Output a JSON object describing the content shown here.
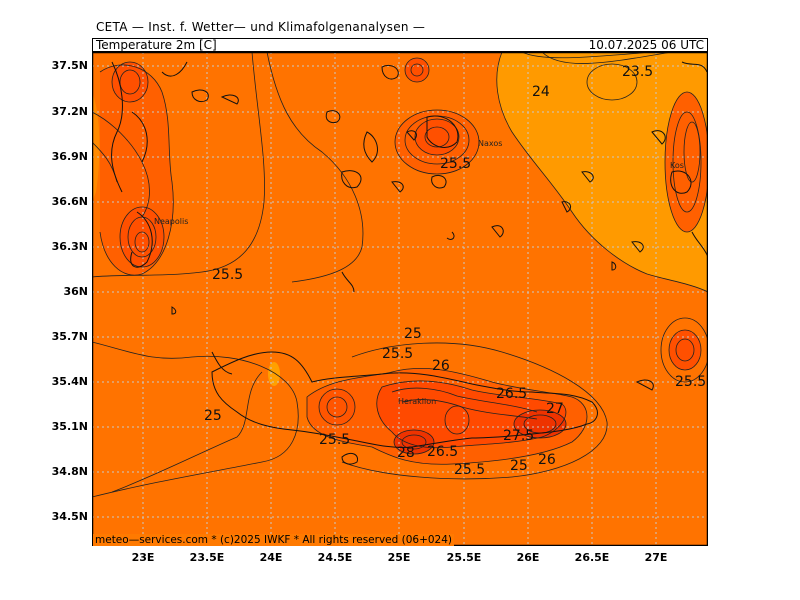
{
  "header": {
    "title": "CETA — Inst. f. Wetter— und Klimafolgenanalysen —",
    "variable": "Temperature 2m [C]",
    "valid_time": "10.07.2025 06 UTC"
  },
  "footer": "meteo—services.com * (c)2025 IWKF * All rights reserved (06+024)",
  "axes": {
    "lat_labels": [
      "37.5N",
      "37.2N",
      "36.9N",
      "36.6N",
      "36.3N",
      "36N",
      "35.7N",
      "35.4N",
      "35.1N",
      "34.8N",
      "34.5N"
    ],
    "lon_labels": [
      "23E",
      "23.5E",
      "24E",
      "24.5E",
      "25E",
      "25.5E",
      "26E",
      "26.5E",
      "27E"
    ]
  },
  "places": [
    "Neapolis",
    "Naxos",
    "Heraklion",
    "Kos"
  ],
  "contour_labels": [
    "23.5",
    "24",
    "25.5",
    "25.5",
    "25",
    "25.5",
    "26",
    "25",
    "25.5",
    "26.5",
    "27",
    "27.5",
    "28",
    "26.5",
    "25.5",
    "25",
    "26",
    "25.5"
  ],
  "colors": {
    "base": "#ff7300",
    "cool": "#ff9a00",
    "warm": "#ff5500",
    "hot": "#ee3300",
    "grid": "#c8c8c8"
  }
}
